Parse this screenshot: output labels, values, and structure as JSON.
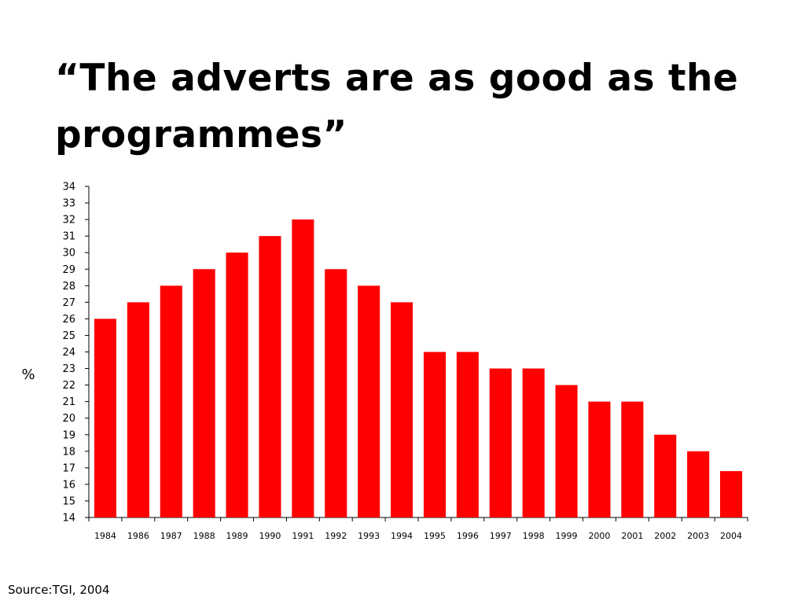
{
  "slide": {
    "title": "“The adverts are as good as the programmes”",
    "source": "Source:TGI, 2004"
  },
  "colors": {
    "bar": "#ff0000",
    "axis": "#000000",
    "background": "#ffffff"
  },
  "chart_data": {
    "type": "bar",
    "title": "“The adverts are as good as the programmes”",
    "xlabel": "",
    "ylabel": "%",
    "ylim": [
      14,
      34
    ],
    "yticks": [
      14,
      15,
      16,
      17,
      18,
      19,
      20,
      21,
      22,
      23,
      24,
      25,
      26,
      27,
      28,
      29,
      30,
      31,
      32,
      33,
      34
    ],
    "grid": false,
    "legend": "none",
    "categories": [
      "1984",
      "1986",
      "1987",
      "1988",
      "1989",
      "1990",
      "1991",
      "1992",
      "1993",
      "1994",
      "1995",
      "1996",
      "1997",
      "1998",
      "1999",
      "2000",
      "2001",
      "2002",
      "2003",
      "2004"
    ],
    "values": [
      26,
      27,
      28,
      29,
      30,
      31,
      32,
      29,
      28,
      27,
      24,
      24,
      23,
      23,
      22,
      21,
      21,
      19,
      18,
      16.8
    ]
  }
}
